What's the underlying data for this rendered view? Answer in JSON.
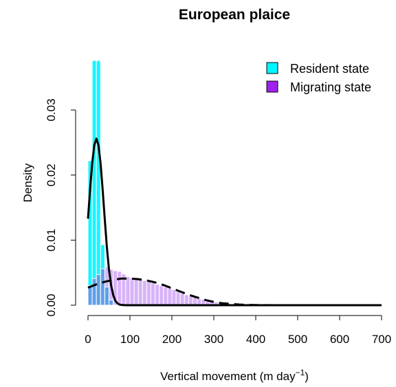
{
  "chart_data": {
    "type": "histogram",
    "title": "European plaice",
    "xlabel": "Vertical movement (m day",
    "xlabel_superscript": "−1",
    "xlabel_suffix": ")",
    "ylabel": "Density",
    "xlim": [
      0,
      700
    ],
    "ylim": [
      0,
      0.035
    ],
    "x_ticks": [
      0,
      100,
      200,
      300,
      400,
      500,
      600,
      700
    ],
    "y_ticks": [
      0.0,
      0.01,
      0.02,
      0.03
    ],
    "y_tick_labels": [
      "0.00",
      "0.01",
      "0.02",
      "0.03"
    ],
    "legend_position": "top-right",
    "bin_width": 10,
    "series": [
      {
        "name": "Resident state",
        "color": "#00f5ff",
        "bins": [
          {
            "x0": 0,
            "x1": 10,
            "density": 0.0222
          },
          {
            "x0": 10,
            "x1": 20,
            "density": 0.0376
          },
          {
            "x0": 20,
            "x1": 30,
            "density": 0.0376
          },
          {
            "x0": 30,
            "x1": 40,
            "density": 0.0093
          },
          {
            "x0": 40,
            "x1": 50,
            "density": 0.0028
          },
          {
            "x0": 50,
            "x1": 60,
            "density": 0.0008
          }
        ]
      },
      {
        "name": "Migrating state",
        "color": "#a020f0",
        "bins": [
          {
            "x0": 0,
            "x1": 10,
            "density": 0.003
          },
          {
            "x0": 10,
            "x1": 20,
            "density": 0.0041
          },
          {
            "x0": 20,
            "x1": 30,
            "density": 0.0047
          },
          {
            "x0": 30,
            "x1": 40,
            "density": 0.0056
          },
          {
            "x0": 40,
            "x1": 50,
            "density": 0.0059
          },
          {
            "x0": 50,
            "x1": 60,
            "density": 0.0055
          },
          {
            "x0": 60,
            "x1": 70,
            "density": 0.0053
          },
          {
            "x0": 70,
            "x1": 80,
            "density": 0.0052
          },
          {
            "x0": 80,
            "x1": 90,
            "density": 0.0048
          },
          {
            "x0": 90,
            "x1": 100,
            "density": 0.0044
          },
          {
            "x0": 100,
            "x1": 110,
            "density": 0.0042
          },
          {
            "x0": 110,
            "x1": 120,
            "density": 0.004
          },
          {
            "x0": 120,
            "x1": 130,
            "density": 0.0039
          },
          {
            "x0": 130,
            "x1": 140,
            "density": 0.0038
          },
          {
            "x0": 140,
            "x1": 150,
            "density": 0.0036
          },
          {
            "x0": 150,
            "x1": 160,
            "density": 0.0034
          },
          {
            "x0": 160,
            "x1": 170,
            "density": 0.0032
          },
          {
            "x0": 170,
            "x1": 180,
            "density": 0.003
          },
          {
            "x0": 180,
            "x1": 190,
            "density": 0.0028
          },
          {
            "x0": 190,
            "x1": 200,
            "density": 0.0026
          },
          {
            "x0": 200,
            "x1": 210,
            "density": 0.0024
          },
          {
            "x0": 210,
            "x1": 220,
            "density": 0.0021
          },
          {
            "x0": 220,
            "x1": 230,
            "density": 0.0018
          },
          {
            "x0": 230,
            "x1": 240,
            "density": 0.0016
          },
          {
            "x0": 240,
            "x1": 250,
            "density": 0.0014
          },
          {
            "x0": 250,
            "x1": 260,
            "density": 0.0012
          },
          {
            "x0": 260,
            "x1": 270,
            "density": 0.001
          },
          {
            "x0": 270,
            "x1": 280,
            "density": 0.0009
          },
          {
            "x0": 280,
            "x1": 290,
            "density": 0.0007
          },
          {
            "x0": 290,
            "x1": 300,
            "density": 0.0006
          },
          {
            "x0": 300,
            "x1": 310,
            "density": 0.0005
          },
          {
            "x0": 310,
            "x1": 320,
            "density": 0.0004
          },
          {
            "x0": 320,
            "x1": 330,
            "density": 0.0003
          },
          {
            "x0": 330,
            "x1": 340,
            "density": 0.0002
          },
          {
            "x0": 340,
            "x1": 350,
            "density": 0.00015
          },
          {
            "x0": 350,
            "x1": 360,
            "density": 0.0001
          },
          {
            "x0": 360,
            "x1": 370,
            "density": 7e-05
          },
          {
            "x0": 370,
            "x1": 380,
            "density": 5e-05
          }
        ]
      }
    ],
    "curves": [
      {
        "series": "Resident state",
        "line_style": "solid",
        "points": [
          [
            0,
            0.0133
          ],
          [
            5,
            0.0178
          ],
          [
            10,
            0.0218
          ],
          [
            15,
            0.0246
          ],
          [
            20,
            0.0256
          ],
          [
            25,
            0.0246
          ],
          [
            30,
            0.0218
          ],
          [
            35,
            0.0177
          ],
          [
            40,
            0.0132
          ],
          [
            45,
            0.0089
          ],
          [
            50,
            0.0055
          ],
          [
            55,
            0.0031
          ],
          [
            60,
            0.0016
          ],
          [
            65,
            0.0007
          ],
          [
            70,
            0.0003
          ],
          [
            75,
            0.0001
          ],
          [
            80,
            4e-05
          ],
          [
            90,
            0.0
          ],
          [
            700,
            0.0
          ]
        ]
      },
      {
        "series": "Migrating state",
        "line_style": "dashed",
        "points": [
          [
            0,
            0.0027
          ],
          [
            20,
            0.0032
          ],
          [
            40,
            0.0036
          ],
          [
            60,
            0.0039
          ],
          [
            80,
            0.0041
          ],
          [
            100,
            0.0041
          ],
          [
            120,
            0.004
          ],
          [
            140,
            0.0038
          ],
          [
            160,
            0.0035
          ],
          [
            180,
            0.0031
          ],
          [
            200,
            0.0026
          ],
          [
            220,
            0.0021
          ],
          [
            240,
            0.0016
          ],
          [
            260,
            0.0012
          ],
          [
            280,
            0.0008
          ],
          [
            300,
            0.0005
          ],
          [
            320,
            0.0003
          ],
          [
            340,
            0.0002
          ],
          [
            360,
            0.0001
          ],
          [
            380,
            5e-05
          ],
          [
            400,
            2e-05
          ],
          [
            450,
            0.0
          ],
          [
            700,
            0.0
          ]
        ]
      }
    ],
    "overlap_color": "#5fa0e8",
    "outline_color": "#ffffff",
    "curve_color": "#000000"
  }
}
